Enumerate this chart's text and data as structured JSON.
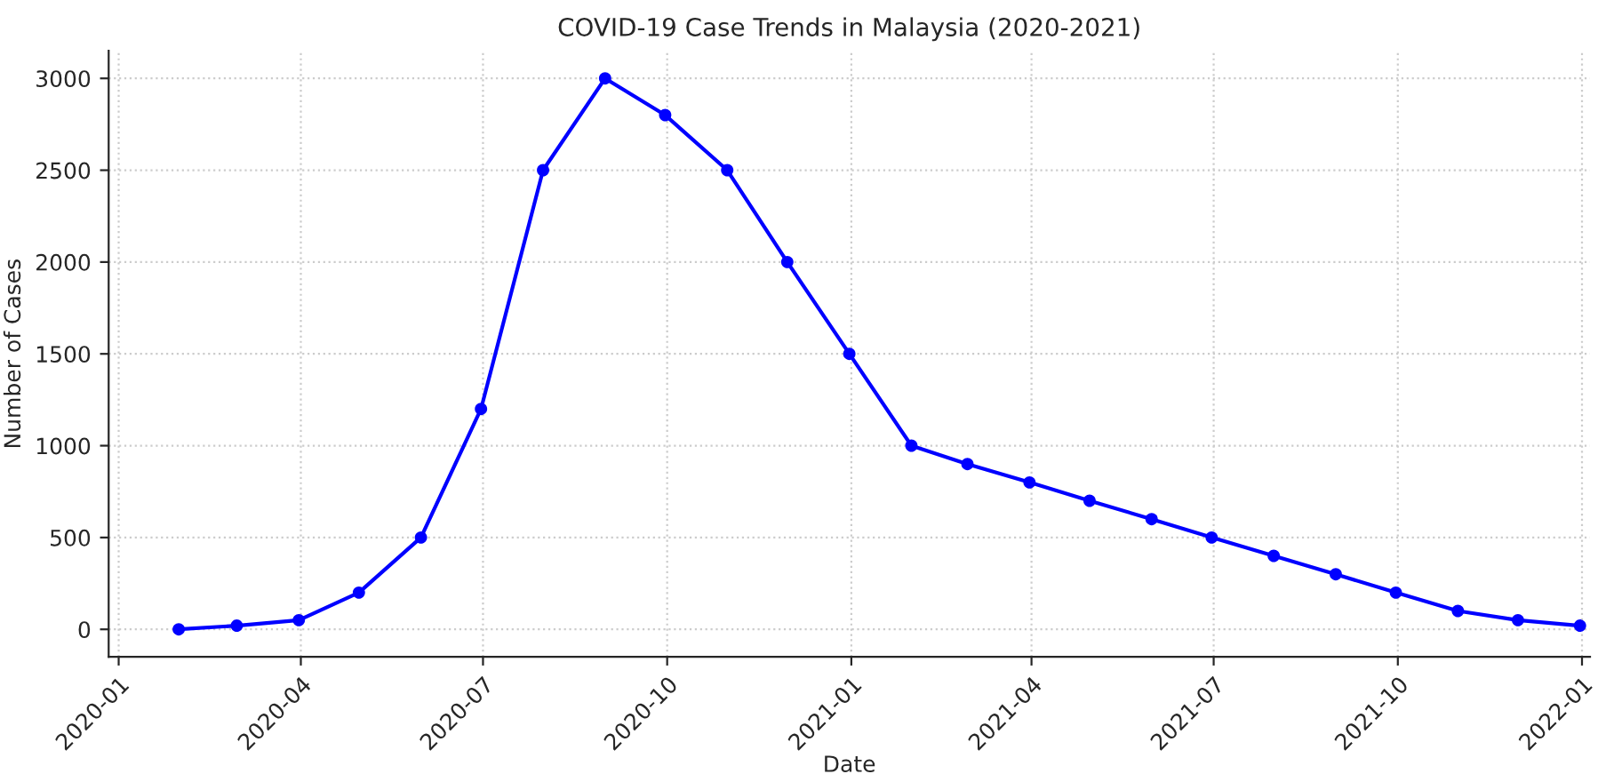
{
  "chart_data": {
    "type": "line",
    "title": "COVID-19 Case Trends in Malaysia (2020-2021)",
    "xlabel": "Date",
    "ylabel": "Number of Cases",
    "x": [
      "2020-01-31",
      "2020-02-29",
      "2020-03-31",
      "2020-04-30",
      "2020-05-31",
      "2020-06-30",
      "2020-07-31",
      "2020-08-31",
      "2020-09-30",
      "2020-10-31",
      "2020-11-30",
      "2020-12-31",
      "2021-01-31",
      "2021-02-28",
      "2021-03-31",
      "2021-04-30",
      "2021-05-31",
      "2021-06-30",
      "2021-07-31",
      "2021-08-31",
      "2021-09-30",
      "2021-10-31",
      "2021-11-30",
      "2021-12-31"
    ],
    "series": [
      {
        "color": "#0000ff",
        "values": [
          0,
          20,
          50,
          200,
          500,
          1200,
          2500,
          3000,
          2800,
          2500,
          2000,
          1500,
          1000,
          900,
          800,
          700,
          600,
          500,
          400,
          300,
          200,
          100,
          50,
          20
        ]
      }
    ],
    "xlim": [
      "2019-12-27",
      "2022-01-05"
    ],
    "xticks": [
      {
        "value": "2020-01-01",
        "label": "2020-01"
      },
      {
        "value": "2020-04-01",
        "label": "2020-04"
      },
      {
        "value": "2020-07-01",
        "label": "2020-07"
      },
      {
        "value": "2020-10-01",
        "label": "2020-10"
      },
      {
        "value": "2021-01-01",
        "label": "2021-01"
      },
      {
        "value": "2021-04-01",
        "label": "2021-04"
      },
      {
        "value": "2021-07-01",
        "label": "2021-07"
      },
      {
        "value": "2021-10-01",
        "label": "2021-10"
      },
      {
        "value": "2022-01-01",
        "label": "2022-01"
      }
    ],
    "ylim": [
      -150,
      3150
    ],
    "yticks": [
      0,
      500,
      1000,
      1500,
      2000,
      2500,
      3000
    ],
    "grid": true,
    "marker": "circle",
    "line_style": "solid",
    "legend": false
  }
}
